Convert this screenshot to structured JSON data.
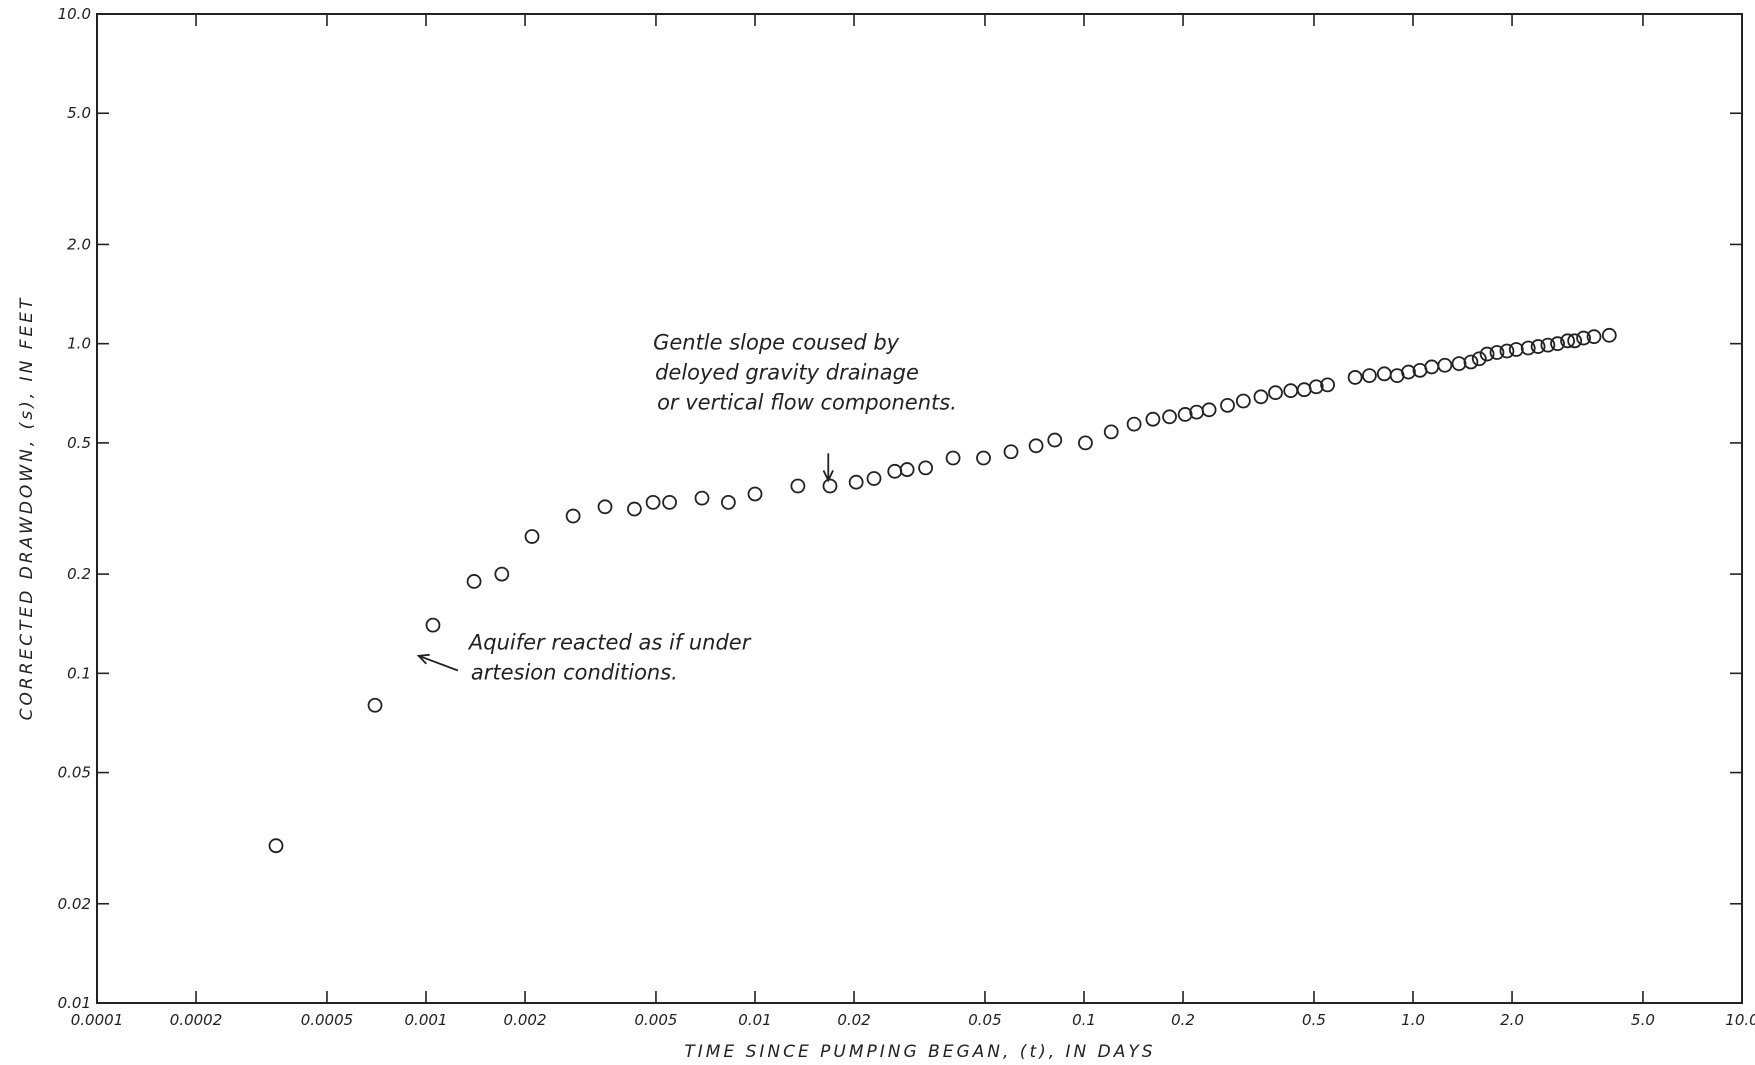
{
  "chart_data": {
    "type": "scatter",
    "xlabel": "TIME SINCE PUMPING BEGAN, (t), IN DAYS",
    "ylabel": "CORRECTED DRAWDOWN, (s), IN FEET",
    "x_scale": "log",
    "y_scale": "log",
    "xlim": [
      0.0001,
      10.0
    ],
    "ylim": [
      0.01,
      10.0
    ],
    "grid": false,
    "x_ticks": [
      {
        "value": 0.0001,
        "label": "0.0001"
      },
      {
        "value": 0.0002,
        "label": "0.0002"
      },
      {
        "value": 0.0005,
        "label": "0.0005"
      },
      {
        "value": 0.001,
        "label": "0.001"
      },
      {
        "value": 0.002,
        "label": "0.002"
      },
      {
        "value": 0.005,
        "label": "0.005"
      },
      {
        "value": 0.01,
        "label": "0.01"
      },
      {
        "value": 0.02,
        "label": "0.02"
      },
      {
        "value": 0.05,
        "label": "0.05"
      },
      {
        "value": 0.1,
        "label": "0.1"
      },
      {
        "value": 0.2,
        "label": "0.2"
      },
      {
        "value": 0.5,
        "label": "0.5"
      },
      {
        "value": 1.0,
        "label": "1.0"
      },
      {
        "value": 2.0,
        "label": "2.0"
      },
      {
        "value": 5.0,
        "label": "5.0"
      },
      {
        "value": 10.0,
        "label": "10.0"
      }
    ],
    "y_ticks": [
      {
        "value": 0.01,
        "label": "0.01"
      },
      {
        "value": 0.02,
        "label": "0.02"
      },
      {
        "value": 0.05,
        "label": "0.05"
      },
      {
        "value": 0.1,
        "label": "0.1"
      },
      {
        "value": 0.2,
        "label": "0.2"
      },
      {
        "value": 0.5,
        "label": "0.5"
      },
      {
        "value": 1.0,
        "label": "1.0"
      },
      {
        "value": 2.0,
        "label": "2.0"
      },
      {
        "value": 5.0,
        "label": "5.0"
      },
      {
        "value": 10.0,
        "label": "10.0"
      }
    ],
    "points": [
      {
        "x": 0.00035,
        "y": 0.03
      },
      {
        "x": 0.0007,
        "y": 0.08
      },
      {
        "x": 0.00105,
        "y": 0.14
      },
      {
        "x": 0.0014,
        "y": 0.19
      },
      {
        "x": 0.0017,
        "y": 0.2
      },
      {
        "x": 0.0021,
        "y": 0.26
      },
      {
        "x": 0.0028,
        "y": 0.3
      },
      {
        "x": 0.0035,
        "y": 0.32
      },
      {
        "x": 0.0043,
        "y": 0.315
      },
      {
        "x": 0.0049,
        "y": 0.33
      },
      {
        "x": 0.0055,
        "y": 0.33
      },
      {
        "x": 0.0069,
        "y": 0.34
      },
      {
        "x": 0.0083,
        "y": 0.33
      },
      {
        "x": 0.01,
        "y": 0.35
      },
      {
        "x": 0.0135,
        "y": 0.37
      },
      {
        "x": 0.0169,
        "y": 0.37
      },
      {
        "x": 0.0203,
        "y": 0.38
      },
      {
        "x": 0.023,
        "y": 0.39
      },
      {
        "x": 0.0266,
        "y": 0.41
      },
      {
        "x": 0.029,
        "y": 0.415
      },
      {
        "x": 0.033,
        "y": 0.42
      },
      {
        "x": 0.04,
        "y": 0.45
      },
      {
        "x": 0.0495,
        "y": 0.45
      },
      {
        "x": 0.06,
        "y": 0.47
      },
      {
        "x": 0.0715,
        "y": 0.49
      },
      {
        "x": 0.0815,
        "y": 0.51
      },
      {
        "x": 0.101,
        "y": 0.5
      },
      {
        "x": 0.121,
        "y": 0.54
      },
      {
        "x": 0.142,
        "y": 0.57
      },
      {
        "x": 0.162,
        "y": 0.59
      },
      {
        "x": 0.182,
        "y": 0.6
      },
      {
        "x": 0.203,
        "y": 0.61
      },
      {
        "x": 0.22,
        "y": 0.62
      },
      {
        "x": 0.24,
        "y": 0.63
      },
      {
        "x": 0.273,
        "y": 0.65
      },
      {
        "x": 0.305,
        "y": 0.67
      },
      {
        "x": 0.345,
        "y": 0.69
      },
      {
        "x": 0.382,
        "y": 0.71
      },
      {
        "x": 0.425,
        "y": 0.72
      },
      {
        "x": 0.467,
        "y": 0.725
      },
      {
        "x": 0.508,
        "y": 0.74
      },
      {
        "x": 0.55,
        "y": 0.75
      },
      {
        "x": 0.667,
        "y": 0.79
      },
      {
        "x": 0.737,
        "y": 0.8
      },
      {
        "x": 0.818,
        "y": 0.81
      },
      {
        "x": 0.895,
        "y": 0.8
      },
      {
        "x": 0.969,
        "y": 0.82
      },
      {
        "x": 1.05,
        "y": 0.83
      },
      {
        "x": 1.14,
        "y": 0.85
      },
      {
        "x": 1.25,
        "y": 0.86
      },
      {
        "x": 1.38,
        "y": 0.87
      },
      {
        "x": 1.5,
        "y": 0.88
      },
      {
        "x": 1.59,
        "y": 0.9
      },
      {
        "x": 1.68,
        "y": 0.93
      },
      {
        "x": 1.8,
        "y": 0.94
      },
      {
        "x": 1.93,
        "y": 0.95
      },
      {
        "x": 2.06,
        "y": 0.96
      },
      {
        "x": 2.24,
        "y": 0.97
      },
      {
        "x": 2.4,
        "y": 0.98
      },
      {
        "x": 2.57,
        "y": 0.99
      },
      {
        "x": 2.75,
        "y": 1.0
      },
      {
        "x": 2.95,
        "y": 1.02
      },
      {
        "x": 3.1,
        "y": 1.02
      },
      {
        "x": 3.3,
        "y": 1.04
      },
      {
        "x": 3.55,
        "y": 1.05
      },
      {
        "x": 3.95,
        "y": 1.06
      }
    ],
    "annotations": [
      {
        "lines": [
          "Gentle slope coused by",
          "deloyed gravity drainage",
          "or vertical flow components."
        ],
        "text_x": 0.0049,
        "text_y": 0.96,
        "arrow_from": [
          0.0167,
          0.465
        ],
        "arrow_to": [
          0.0167,
          0.385
        ]
      },
      {
        "lines": [
          "Aquifer reacted as if under",
          "artesion conditions."
        ],
        "text_x": 0.00135,
        "text_y": 0.118,
        "arrow_from": [
          0.00125,
          0.102
        ],
        "arrow_to": [
          0.00095,
          0.113
        ]
      }
    ]
  }
}
